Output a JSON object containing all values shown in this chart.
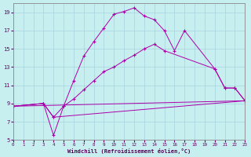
{
  "xlabel": "Windchill (Refroidissement éolien,°C)",
  "xlim": [
    0,
    23
  ],
  "ylim": [
    5,
    20
  ],
  "yticks": [
    5,
    7,
    9,
    11,
    13,
    15,
    17,
    19
  ],
  "xticks": [
    0,
    1,
    2,
    3,
    4,
    5,
    6,
    7,
    8,
    9,
    10,
    11,
    12,
    13,
    14,
    15,
    16,
    17,
    18,
    19,
    20,
    21,
    22,
    23
  ],
  "background_color": "#c8eff0",
  "grid_color": "#a0ccd8",
  "line_color": "#aa00aa",
  "line1_x": [
    0,
    3,
    4,
    5,
    6,
    7,
    8,
    9,
    10,
    11,
    12,
    13,
    14,
    15,
    16,
    17,
    20,
    21,
    22,
    23
  ],
  "line1_y": [
    8.7,
    9.0,
    5.5,
    8.7,
    11.5,
    14.2,
    15.8,
    17.3,
    18.8,
    19.1,
    19.5,
    18.6,
    18.2,
    17.0,
    14.8,
    17.0,
    12.8,
    10.7,
    10.7,
    9.3
  ],
  "line2_x": [
    0,
    3,
    4,
    5,
    6,
    7,
    8,
    9,
    10,
    11,
    12,
    13,
    14,
    15,
    20,
    21,
    22,
    23
  ],
  "line2_y": [
    8.7,
    9.0,
    7.5,
    8.7,
    9.5,
    10.5,
    11.5,
    12.5,
    13.0,
    13.7,
    14.3,
    15.0,
    15.5,
    14.8,
    12.8,
    10.7,
    10.7,
    9.3
  ],
  "line3_x": [
    0,
    23
  ],
  "line3_y": [
    8.7,
    9.3
  ],
  "line4_x": [
    0,
    3,
    4,
    23
  ],
  "line4_y": [
    8.7,
    9.0,
    7.5,
    9.3
  ]
}
